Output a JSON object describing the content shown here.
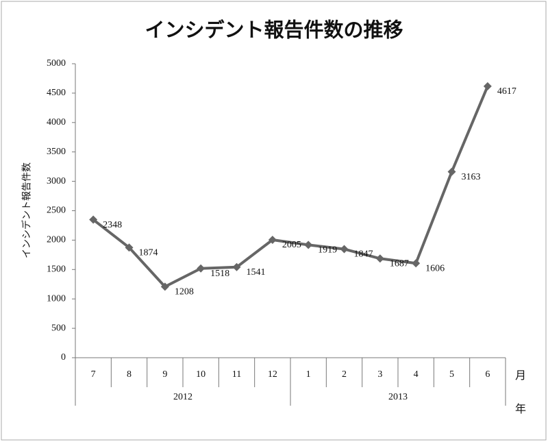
{
  "chart_data": {
    "type": "line",
    "title": "インシデント報告件数の推移",
    "y_label": "インシデント報告件数",
    "x_label": "月",
    "group_label": "年",
    "category_groups": [
      {
        "name": "2012",
        "categories": [
          "7",
          "8",
          "9",
          "10",
          "11",
          "12"
        ]
      },
      {
        "name": "2013",
        "categories": [
          "1",
          "2",
          "3",
          "4",
          "5",
          "6"
        ]
      }
    ],
    "values": [
      2348,
      1874,
      1208,
      1518,
      1541,
      2005,
      1919,
      1847,
      1687,
      1606,
      3163,
      4617
    ],
    "color": "#666666",
    "ylim": [
      0,
      5000
    ],
    "yticks": [
      0,
      500,
      1000,
      1500,
      2000,
      2500,
      3000,
      3500,
      4000,
      4500,
      5000
    ],
    "grid": false
  }
}
